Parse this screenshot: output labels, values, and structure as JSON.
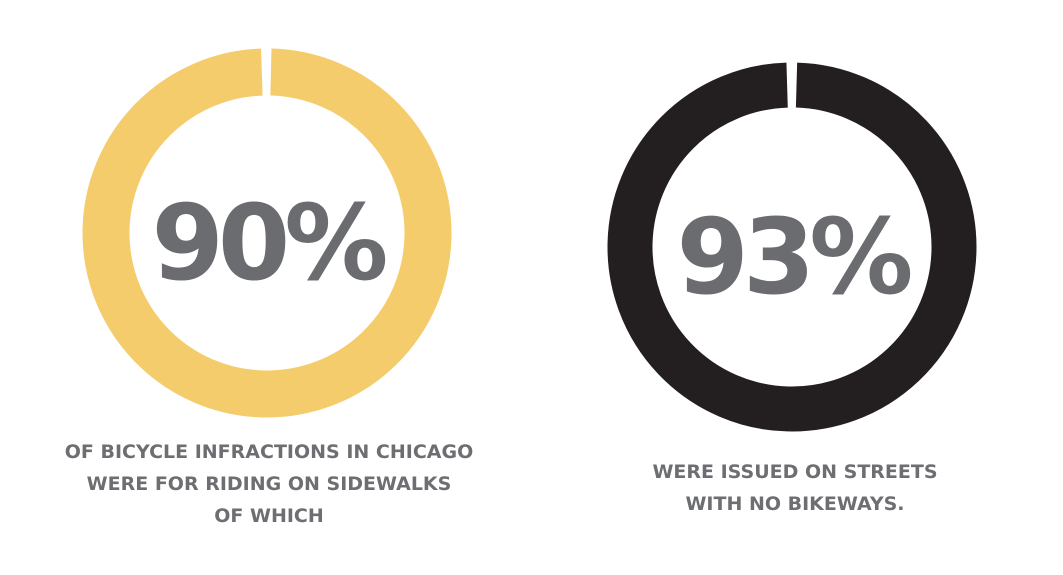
{
  "stats": [
    {
      "figure": "90%",
      "caption": [
        "OF BICYCLE INFRACTIONS IN CHICAGO",
        "WERE FOR RIDING ON SIDEWALKS",
        "OF WHICH"
      ]
    },
    {
      "figure": "93%",
      "caption": [
        "WERE ISSUED ON STREETS",
        "WITH NO BIKEWAYS."
      ]
    }
  ]
}
